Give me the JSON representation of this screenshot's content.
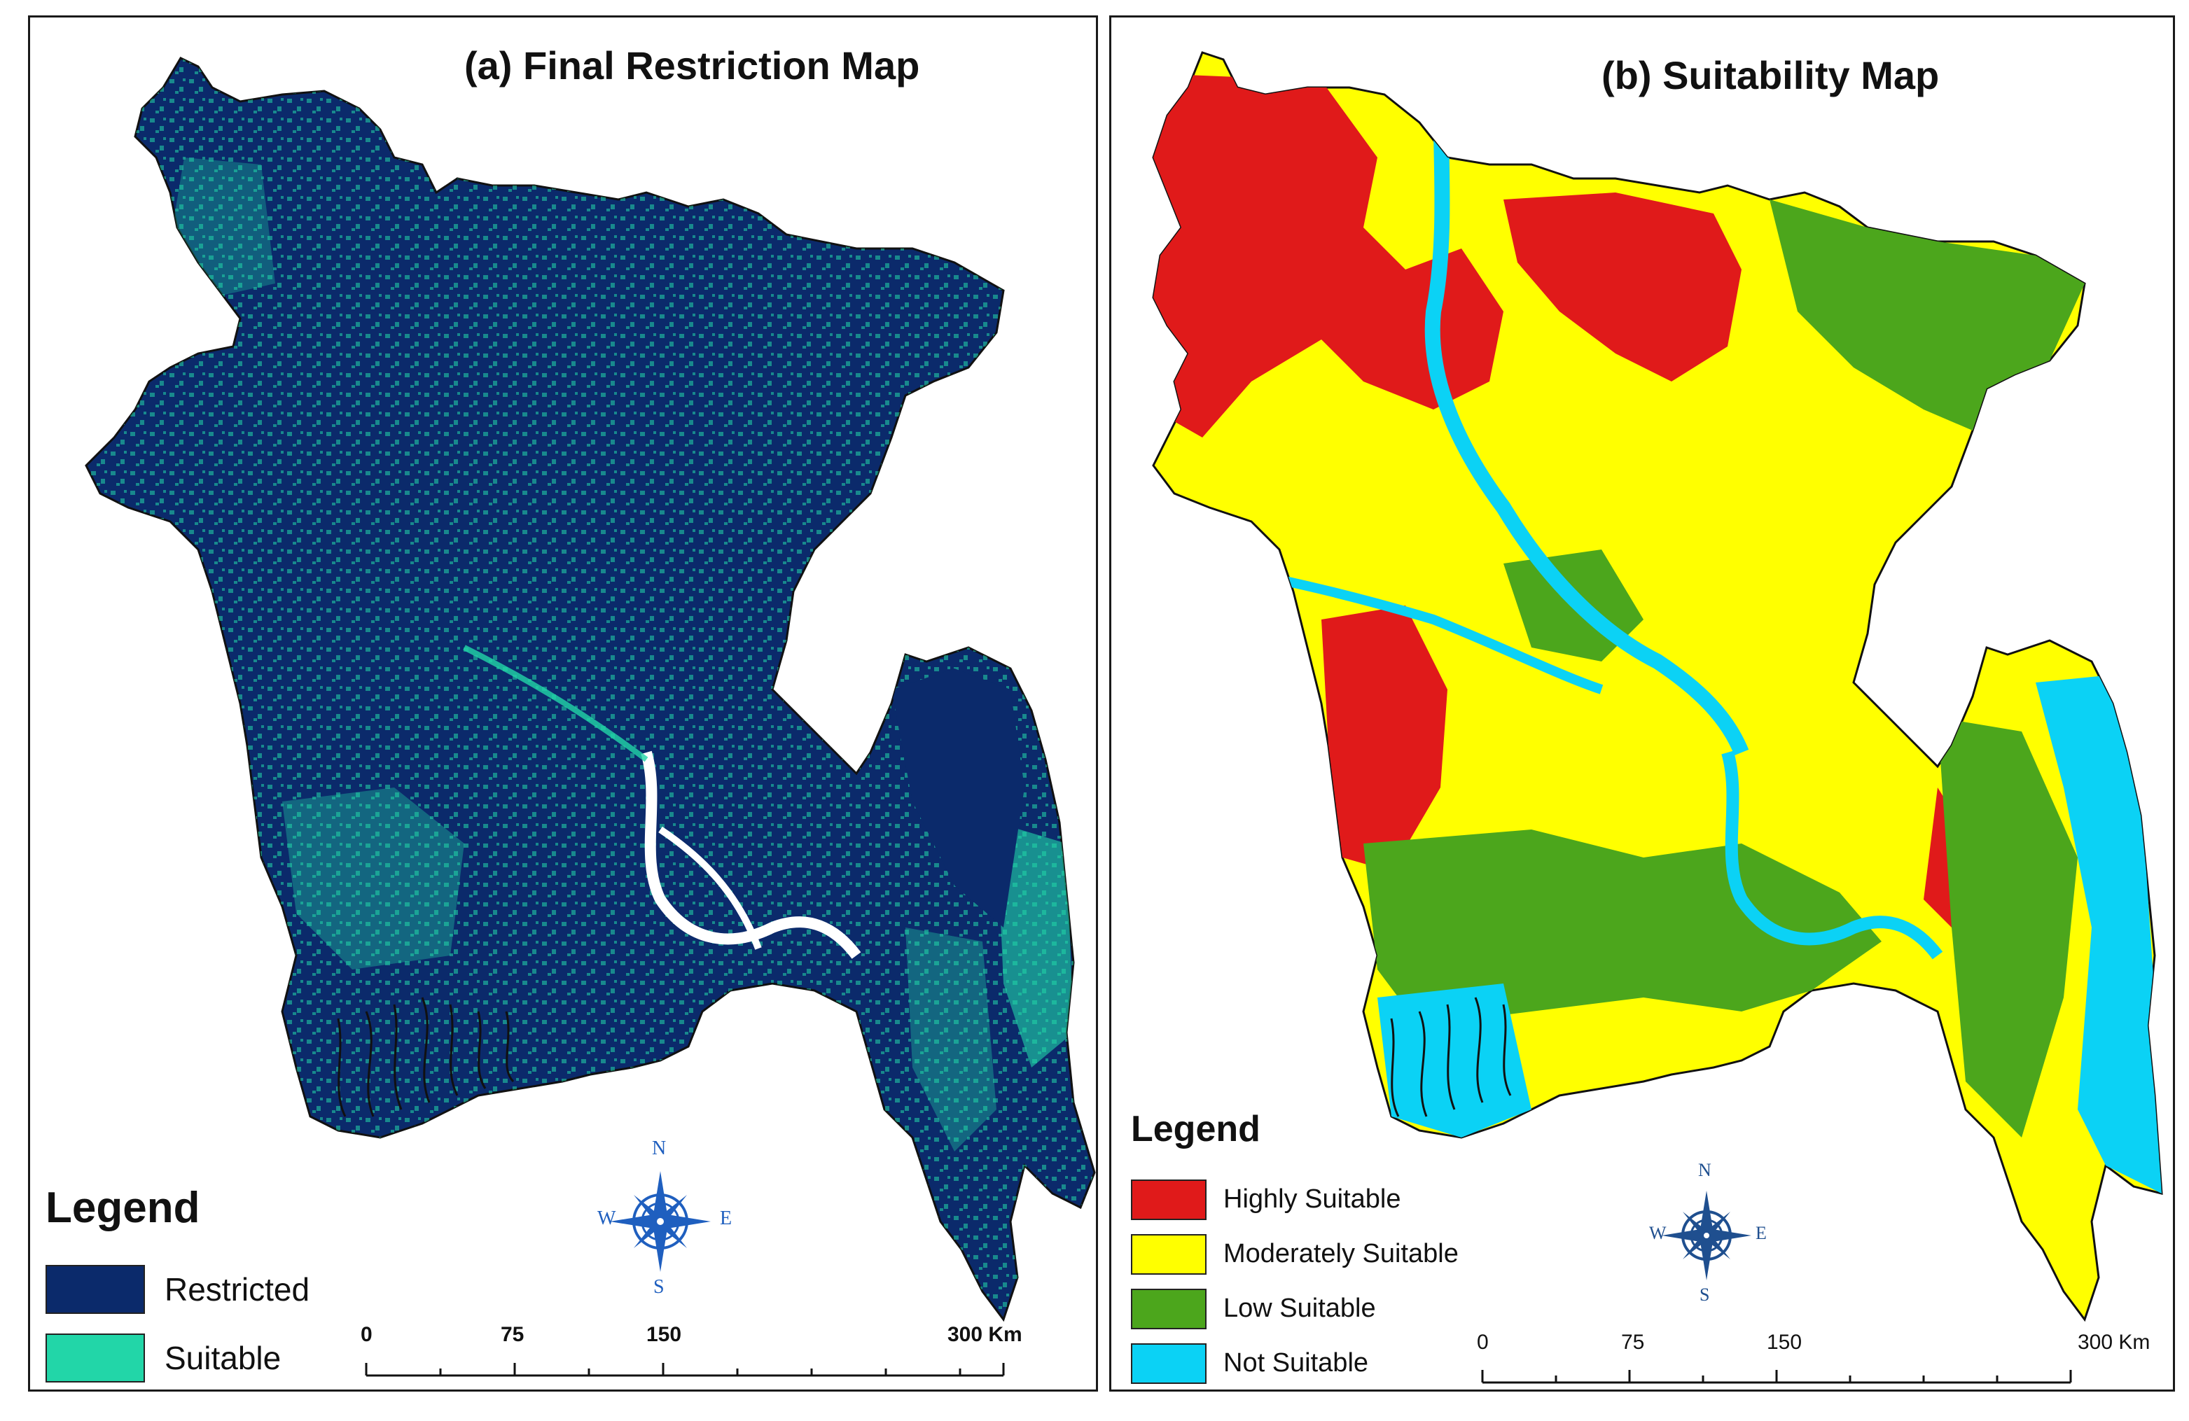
{
  "panel_a": {
    "title": "(a) Final Restriction Map",
    "legend": {
      "title": "Legend",
      "items": [
        {
          "label": "Restricted",
          "color": "#0b2a6b"
        },
        {
          "label": "Suitable",
          "color": "#22d6a8"
        }
      ]
    },
    "compass": {
      "n": "N",
      "s": "S",
      "e": "E",
      "w": "W"
    },
    "scale": {
      "ticks": [
        "0",
        "75",
        "150",
        "300 Km"
      ]
    }
  },
  "panel_b": {
    "title": "(b) Suitability Map",
    "legend": {
      "title": "Legend",
      "items": [
        {
          "label": "Highly Suitable",
          "color": "#e01a1a"
        },
        {
          "label": "Moderately Suitable",
          "color": "#ffff00"
        },
        {
          "label": "Low Suitable",
          "color": "#4ca61c"
        },
        {
          "label": "Not Suitable",
          "color": "#0bd2f5"
        }
      ]
    },
    "compass": {
      "n": "N",
      "s": "S",
      "e": "E",
      "w": "W"
    },
    "scale": {
      "ticks": [
        "0",
        "75",
        "150",
        "300 Km"
      ]
    }
  }
}
